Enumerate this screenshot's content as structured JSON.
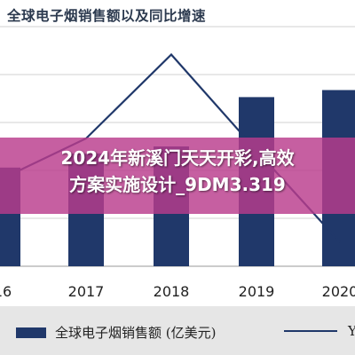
{
  "header": {
    "title": "全球电子烟销售额以及同比增速"
  },
  "overlay": {
    "line1": "2024年新溪门天天开彩,高效",
    "line2": "方案实施设计_9DM3.319"
  },
  "legend": {
    "bar_label": "全球电子烟销售额 (亿美元)",
    "line_label": "YO"
  },
  "colors": {
    "bar": "#20386a",
    "line": "#20386a",
    "grid": "#d0d0d0",
    "banner": "#b93c8c"
  },
  "chart_data": {
    "type": "bar",
    "categories": [
      "16",
      "2017",
      "2018",
      "2019",
      "2020"
    ],
    "series": [
      {
        "values": [
          280,
          320,
          340,
          480,
          500
        ]
      },
      {
        "values": [
          60,
          110,
          215,
          95,
          -20
        ]
      }
    ],
    "ylim": [
      0,
      680
    ],
    "line_ylim": [
      -50,
      250
    ],
    "grid": true
  }
}
